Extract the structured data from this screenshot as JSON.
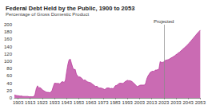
{
  "chart_data": {
    "type": "area",
    "title": "Federal Debt Held by the Public, 1900 to 2053",
    "subtitle": "Percentage of Gross Domestic Product",
    "annotations": [
      {
        "text": "Projected",
        "x": 2023
      }
    ],
    "x": [
      1900,
      1901,
      1902,
      1903,
      1904,
      1905,
      1906,
      1907,
      1908,
      1909,
      1910,
      1911,
      1912,
      1913,
      1914,
      1915,
      1916,
      1917,
      1918,
      1919,
      1920,
      1921,
      1922,
      1923,
      1924,
      1925,
      1926,
      1927,
      1928,
      1929,
      1930,
      1931,
      1932,
      1933,
      1934,
      1935,
      1936,
      1937,
      1938,
      1939,
      1940,
      1941,
      1942,
      1943,
      1944,
      1945,
      1946,
      1947,
      1948,
      1949,
      1950,
      1951,
      1952,
      1953,
      1954,
      1955,
      1956,
      1957,
      1958,
      1959,
      1960,
      1961,
      1962,
      1963,
      1964,
      1965,
      1966,
      1967,
      1968,
      1969,
      1970,
      1971,
      1972,
      1973,
      1974,
      1975,
      1976,
      1977,
      1978,
      1979,
      1980,
      1981,
      1982,
      1983,
      1984,
      1985,
      1986,
      1987,
      1988,
      1989,
      1990,
      1991,
      1992,
      1993,
      1994,
      1995,
      1996,
      1997,
      1998,
      1999,
      2000,
      2001,
      2002,
      2003,
      2004,
      2005,
      2006,
      2007,
      2008,
      2009,
      2010,
      2011,
      2012,
      2013,
      2014,
      2015,
      2016,
      2017,
      2018,
      2019,
      2020,
      2021,
      2022,
      2023,
      2024,
      2025,
      2026,
      2027,
      2028,
      2029,
      2030,
      2031,
      2032,
      2033,
      2034,
      2035,
      2036,
      2037,
      2038,
      2039,
      2040,
      2041,
      2042,
      2043,
      2044,
      2045,
      2046,
      2047,
      2048,
      2049,
      2050,
      2051,
      2052,
      2053
    ],
    "values": [
      8,
      7,
      6,
      6,
      5,
      5,
      5,
      4,
      4,
      4,
      4,
      4,
      3,
      3,
      3,
      3,
      3,
      10,
      25,
      33,
      27,
      28,
      26,
      22,
      20,
      18,
      16,
      15,
      15,
      14,
      16,
      20,
      31,
      40,
      40,
      39,
      40,
      38,
      40,
      44,
      44,
      42,
      48,
      71,
      91,
      104,
      106,
      94,
      83,
      77,
      78,
      65,
      60,
      57,
      57,
      55,
      51,
      48,
      49,
      47,
      44,
      43,
      42,
      41,
      38,
      36,
      33,
      31,
      32,
      28,
      27,
      27,
      26,
      25,
      23,
      24,
      27,
      27,
      27,
      25,
      26,
      25,
      27,
      33,
      34,
      36,
      39,
      40,
      40,
      39,
      41,
      44,
      46,
      48,
      47,
      47,
      46,
      44,
      41,
      38,
      34,
      31,
      32,
      34,
      35,
      35,
      35,
      35,
      39,
      52,
      60,
      65,
      70,
      72,
      73,
      72,
      76,
      76,
      77,
      79,
      99,
      97,
      97,
      98,
      102,
      103,
      104,
      105,
      107,
      109,
      111,
      113,
      115,
      118,
      120,
      123,
      125,
      128,
      131,
      134,
      137,
      140,
      143,
      147,
      150,
      154,
      158,
      162,
      166,
      170,
      174,
      178,
      181,
      185
    ],
    "color": "#b8399a",
    "xlim": [
      1900,
      2053
    ],
    "xticks": [
      1903,
      1913,
      1923,
      1933,
      1943,
      1953,
      1963,
      1973,
      1983,
      1993,
      2003,
      2013,
      2023,
      2033,
      2043,
      2053
    ],
    "ylim": [
      0,
      200
    ],
    "yticks": [
      0,
      20,
      40,
      60,
      80,
      100,
      120,
      140,
      160,
      180,
      200
    ],
    "grid": false
  }
}
